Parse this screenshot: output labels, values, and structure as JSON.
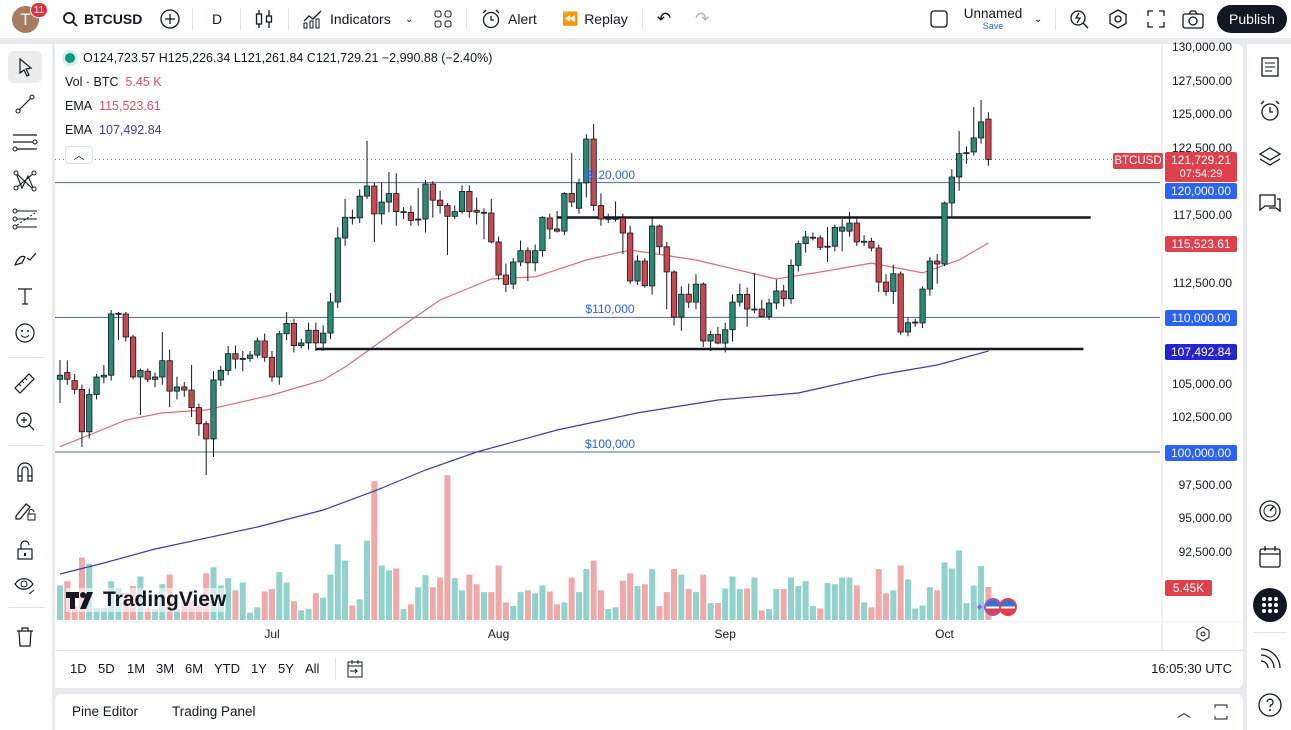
{
  "topbar": {
    "avatar_letter": "T",
    "notifications": "11",
    "symbol": "BTCUSD",
    "interval": "D",
    "indicators": "Indicators",
    "alert": "Alert",
    "replay": "Replay",
    "layout_name": "Unnamed",
    "save": "Save",
    "publish": "Publish"
  },
  "legend": {
    "ohlc": "O124,723.57 H125,226.34 L121,261.84 C121,729.21 −2,990.88 (−2.40%)",
    "vol_label": "Vol · BTC",
    "vol_value": "5.45 K",
    "ema1_label": "EMA",
    "ema1_value": "115,523.61",
    "ema2_label": "EMA",
    "ema2_value": "107,492.84"
  },
  "left_tools": [
    "cursor",
    "trend-line",
    "horizontal-lines",
    "pattern",
    "fib-retracement",
    "brush",
    "text",
    "emoji",
    "ruler",
    "zoom-in",
    "magnet",
    "lock-drawings",
    "lock",
    "eye",
    "trash"
  ],
  "right_sidebar": [
    "watchlist",
    "alerts",
    "layers",
    "chat",
    "dial",
    "calendar",
    "apps",
    "signals",
    "help"
  ],
  "price_tags": {
    "symbol": "BTCUSD",
    "last": "121,729.21",
    "countdown": "07:54:29",
    "level_120": "120,000.00",
    "ema1": "115,523.61",
    "level_110": "110,000.00",
    "ema2": "107,492.84",
    "level_100": "100,000.00",
    "volume": "5.45K"
  },
  "chart_data": {
    "type": "candlestick",
    "symbol": "BTCUSD",
    "interval": "D",
    "ylim": [
      90000,
      130000
    ],
    "y_ticks": [
      "130,000.00",
      "127,500.00",
      "125,000.00",
      "122,500.00",
      "120,000.00",
      "117,500.00",
      "115,000.00",
      "112,500.00",
      "110,000.00",
      "107,500.00",
      "105,000.00",
      "102,500.00",
      "100,000.00",
      "97,500.00",
      "95,000.00",
      "92,500.00"
    ],
    "y_tick_values": [
      130000,
      127500,
      125000,
      122500,
      120000,
      117500,
      115000,
      112500,
      110000,
      107500,
      105000,
      102500,
      100000,
      97500,
      95000,
      92500
    ],
    "x_ticks": [
      {
        "label": "Jul",
        "date": "Jul 1"
      },
      {
        "label": "Aug",
        "date": "Aug 1"
      },
      {
        "label": "Sep",
        "date": "Sep 1"
      },
      {
        "label": "Oct",
        "date": "Oct 1"
      }
    ],
    "colors": {
      "up": "#2a8a74",
      "down": "#c9474f",
      "vol_up": "#92d2cc",
      "vol_down": "#f0a8a8",
      "ema1": "#e06c6c",
      "ema2": "#3b3bb0",
      "level": "#4a6b9a",
      "accent": "#2962ff"
    },
    "candles_fields": [
      "date",
      "open",
      "high",
      "low",
      "close",
      "volume_k"
    ],
    "candles": [
      [
        "Jun 2",
        105400,
        106830,
        103640,
        105700,
        5.7
      ],
      [
        "Jun 3",
        105900,
        106800,
        105000,
        105400,
        6.4
      ],
      [
        "Jun 4",
        105300,
        105800,
        104300,
        104650,
        2.3
      ],
      [
        "Jun 5",
        104650,
        105000,
        100370,
        101500,
        10.3
      ],
      [
        "Jun 6",
        101500,
        104700,
        101000,
        104270,
        9.3
      ],
      [
        "Jun 7",
        104270,
        105800,
        103900,
        105570,
        2.0
      ],
      [
        "Jun 8",
        105570,
        106460,
        105100,
        105700,
        2.0
      ],
      [
        "Jun 9",
        105700,
        110550,
        105300,
        110250,
        6.4
      ],
      [
        "Jun 10",
        110250,
        110400,
        108300,
        110300,
        5.3
      ],
      [
        "Jun 11",
        110250,
        110400,
        108200,
        108540,
        4.5
      ],
      [
        "Jun 12",
        108540,
        108700,
        105400,
        105570,
        5.6
      ],
      [
        "Jun 13",
        105570,
        106200,
        102750,
        106060,
        7.2
      ],
      [
        "Jun 14",
        106000,
        106200,
        105200,
        105400,
        2.0
      ],
      [
        "Jun 15",
        105400,
        105900,
        104800,
        105570,
        1.8
      ],
      [
        "Jun 16",
        105570,
        108900,
        105000,
        106780,
        5.9
      ],
      [
        "Jun 17",
        106780,
        107600,
        103340,
        104520,
        7.5
      ],
      [
        "Jun 18",
        104520,
        105600,
        103900,
        104830,
        1.8
      ],
      [
        "Jun 19",
        104830,
        105200,
        104100,
        104600,
        2.9
      ],
      [
        "Jun 20",
        104600,
        106460,
        102600,
        103300,
        3.1
      ],
      [
        "Jun 21",
        103300,
        103600,
        101200,
        102100,
        2.3
      ],
      [
        "Jun 22",
        102100,
        102300,
        98290,
        100970,
        7.7
      ],
      [
        "Jun 23",
        100970,
        106000,
        99630,
        105350,
        8.7
      ],
      [
        "Jun 24",
        105350,
        106400,
        104900,
        106060,
        5.7
      ],
      [
        "Jun 25",
        106060,
        107870,
        105700,
        107300,
        6.9
      ],
      [
        "Jun 26",
        107300,
        107900,
        106200,
        106900,
        4.9
      ],
      [
        "Jun 27",
        106950,
        107500,
        106000,
        106950,
        6.2
      ],
      [
        "Jun 28",
        106950,
        107500,
        106700,
        107200,
        1.2
      ],
      [
        "Jun 29",
        107200,
        108500,
        107000,
        108250,
        2.1
      ],
      [
        "Jun 30",
        108250,
        108800,
        106700,
        107030,
        4.7
      ],
      [
        "Jul 1",
        107030,
        107500,
        105200,
        105570,
        5.1
      ],
      [
        "Jul 2",
        105570,
        109000,
        105000,
        108780,
        7.9
      ],
      [
        "Jul 3",
        108780,
        110400,
        108300,
        109550,
        6.2
      ],
      [
        "Jul 4",
        109550,
        109900,
        107400,
        107900,
        3.1
      ],
      [
        "Jul 5",
        107900,
        108400,
        107700,
        108100,
        1.6
      ],
      [
        "Jul 6",
        108100,
        109600,
        107600,
        109040,
        1.8
      ],
      [
        "Jul 7",
        109040,
        109600,
        107500,
        108100,
        4.4
      ],
      [
        "Jul 8",
        108100,
        109400,
        107500,
        108830,
        3.7
      ],
      [
        "Jul 9",
        108830,
        111800,
        108400,
        111140,
        7.5
      ],
      [
        "Jul 10",
        111140,
        116700,
        110700,
        115890,
        12.5
      ],
      [
        "Jul 11",
        115890,
        118800,
        115300,
        117430,
        9.8
      ],
      [
        "Jul 12",
        117430,
        118000,
        116900,
        117380,
        2.4
      ],
      [
        "Jul 13",
        117380,
        119500,
        117000,
        119000,
        3.4
      ],
      [
        "Jul 14",
        119000,
        123100,
        118800,
        119750,
        13.1
      ],
      [
        "Jul 15",
        119750,
        120000,
        115600,
        117680,
        22.9
      ],
      [
        "Jul 16",
        117680,
        120000,
        116900,
        118560,
        9.0
      ],
      [
        "Jul 17",
        118560,
        120800,
        117800,
        119190,
        8.2
      ],
      [
        "Jul 18",
        119190,
        120700,
        116800,
        117850,
        8.5
      ],
      [
        "Jul 19",
        117850,
        118200,
        117300,
        117850,
        1.8
      ],
      [
        "Jul 20",
        117800,
        118300,
        116800,
        117200,
        2.6
      ],
      [
        "Jul 21",
        117250,
        119600,
        116800,
        117300,
        5.4
      ],
      [
        "Jul 22",
        117300,
        120200,
        116300,
        119900,
        7.4
      ],
      [
        "Jul 23",
        119900,
        120100,
        117400,
        118700,
        5.4
      ],
      [
        "Jul 24",
        118700,
        119400,
        117700,
        118300,
        7.0
      ],
      [
        "Jul 25",
        118300,
        118500,
        114630,
        117500,
        23.9
      ],
      [
        "Jul 26",
        117500,
        118300,
        117300,
        117850,
        6.9
      ],
      [
        "Jul 27",
        117850,
        119800,
        117700,
        119350,
        4.9
      ],
      [
        "Jul 28",
        119350,
        119800,
        117400,
        117850,
        7.5
      ],
      [
        "Jul 29",
        117950,
        118900,
        116900,
        117800,
        5.9
      ],
      [
        "Jul 30",
        117800,
        118100,
        115800,
        117800,
        4.6
      ],
      [
        "Jul 31",
        117750,
        118800,
        115500,
        115600,
        4.6
      ],
      [
        "Aug 1",
        115600,
        116000,
        112800,
        113140,
        9.0
      ],
      [
        "Aug 2",
        113140,
        114000,
        111880,
        112450,
        2.9
      ],
      [
        "Aug 3",
        112470,
        114400,
        112100,
        114110,
        2.3
      ],
      [
        "Aug 4",
        114110,
        115700,
        113800,
        114950,
        4.6
      ],
      [
        "Aug 5",
        114950,
        115200,
        112700,
        114050,
        4.9
      ],
      [
        "Aug 6",
        114050,
        115400,
        113400,
        114950,
        4.4
      ],
      [
        "Aug 7",
        114950,
        117500,
        114500,
        117430,
        5.7
      ],
      [
        "Aug 8",
        117380,
        117700,
        115800,
        116560,
        4.7
      ],
      [
        "Aug 9",
        116560,
        117900,
        116300,
        116400,
        2.6
      ],
      [
        "Aug 10",
        116400,
        119300,
        116100,
        119200,
        2.9
      ],
      [
        "Aug 11",
        119200,
        122200,
        118200,
        118560,
        7.0
      ],
      [
        "Aug 12",
        118100,
        120300,
        117700,
        119970,
        4.6
      ],
      [
        "Aug 13",
        119980,
        123600,
        118900,
        123240,
        8.4
      ],
      [
        "Aug 14",
        123240,
        124360,
        117900,
        118300,
        9.8
      ],
      [
        "Aug 15",
        118300,
        119200,
        116800,
        117300,
        4.9
      ],
      [
        "Aug 16",
        117350,
        117700,
        117000,
        117350,
        1.8
      ],
      [
        "Aug 17",
        117350,
        118600,
        117100,
        117350,
        2.1
      ],
      [
        "Aug 18",
        117380,
        117700,
        114700,
        116260,
        6.5
      ],
      [
        "Aug 19",
        116260,
        116800,
        112500,
        112700,
        7.7
      ],
      [
        "Aug 20",
        112700,
        114600,
        112400,
        114180,
        5.6
      ],
      [
        "Aug 21",
        114180,
        114400,
        112200,
        112350,
        5.9
      ],
      [
        "Aug 22",
        112330,
        117400,
        111700,
        116780,
        8.4
      ],
      [
        "Aug 23",
        116780,
        116900,
        114700,
        115240,
        2.3
      ],
      [
        "Aug 24",
        115240,
        115600,
        110600,
        113370,
        4.6
      ],
      [
        "Aug 25",
        113370,
        113500,
        109400,
        110020,
        8.4
      ],
      [
        "Aug 26",
        110020,
        112300,
        109000,
        111720,
        7.5
      ],
      [
        "Aug 27",
        111720,
        112500,
        110700,
        111130,
        5.1
      ],
      [
        "Aug 28",
        111130,
        113200,
        110600,
        112460,
        4.6
      ],
      [
        "Aug 29",
        112470,
        112600,
        107800,
        108240,
        7.5
      ],
      [
        "Aug 30",
        108240,
        109000,
        107500,
        108720,
        2.8
      ],
      [
        "Aug 31",
        108720,
        109300,
        108000,
        108090,
        2.8
      ],
      [
        "Sep 1",
        108090,
        109600,
        107400,
        109080,
        5.2
      ],
      [
        "Sep 2",
        109080,
        111700,
        108200,
        111130,
        7.2
      ],
      [
        "Sep 3",
        111130,
        112500,
        110800,
        111700,
        5.1
      ],
      [
        "Sep 4",
        111700,
        112200,
        109300,
        110620,
        5.2
      ],
      [
        "Sep 5",
        110620,
        113300,
        110300,
        110620,
        7.0
      ],
      [
        "Sep 6",
        110620,
        111300,
        110000,
        110060,
        1.6
      ],
      [
        "Sep 7",
        110060,
        111400,
        109800,
        111060,
        1.8
      ],
      [
        "Sep 8",
        111060,
        112800,
        110600,
        111960,
        5.1
      ],
      [
        "Sep 9",
        111960,
        112400,
        110800,
        111380,
        5.1
      ],
      [
        "Sep 10",
        111380,
        114300,
        111000,
        113860,
        7.0
      ],
      [
        "Sep 11",
        113860,
        115700,
        113400,
        115470,
        5.6
      ],
      [
        "Sep 12",
        115470,
        116400,
        114800,
        115970,
        6.4
      ],
      [
        "Sep 13",
        115950,
        116300,
        115700,
        115950,
        2.3
      ],
      [
        "Sep 14",
        115900,
        116100,
        115000,
        115200,
        1.9
      ],
      [
        "Sep 15",
        115280,
        116700,
        114100,
        115280,
        6.1
      ],
      [
        "Sep 16",
        115280,
        116900,
        114900,
        116680,
        5.9
      ],
      [
        "Sep 17",
        116400,
        117300,
        114900,
        116700,
        7.0
      ],
      [
        "Sep 18",
        116400,
        117830,
        116000,
        117000,
        7.0
      ],
      [
        "Sep 19",
        117000,
        117300,
        115300,
        115600,
        5.7
      ],
      [
        "Sep 20",
        115650,
        116100,
        115300,
        115650,
        2.9
      ],
      [
        "Sep 21",
        115650,
        115900,
        114900,
        115150,
        2.1
      ],
      [
        "Sep 22",
        115150,
        115400,
        111900,
        112620,
        8.4
      ],
      [
        "Sep 23",
        112620,
        113200,
        111600,
        111930,
        4.4
      ],
      [
        "Sep 24",
        111930,
        113900,
        111000,
        113240,
        4.9
      ],
      [
        "Sep 25",
        113220,
        113400,
        108700,
        108910,
        9.0
      ],
      [
        "Sep 26",
        108910,
        110000,
        108600,
        109600,
        6.7
      ],
      [
        "Sep 27",
        109600,
        109900,
        109300,
        109650,
        1.9
      ],
      [
        "Sep 28",
        109580,
        112300,
        109200,
        112100,
        2.4
      ],
      [
        "Sep 29",
        112100,
        114500,
        111600,
        114180,
        5.4
      ],
      [
        "Sep 30",
        114180,
        114700,
        112500,
        113960,
        4.9
      ],
      [
        "Oct 1",
        113960,
        118600,
        113800,
        118490,
        9.5
      ],
      [
        "Oct 2",
        118490,
        121000,
        117500,
        120420,
        8.5
      ],
      [
        "Oct 3",
        120420,
        123840,
        119400,
        122160,
        11.5
      ],
      [
        "Oct 4",
        122230,
        122700,
        121400,
        122230,
        2.8
      ],
      [
        "Oct 5",
        122280,
        125620,
        122000,
        123320,
        5.7
      ],
      [
        "Oct 6",
        123320,
        126140,
        122900,
        124510,
        8.9
      ],
      [
        "Oct 7",
        124723.57,
        125226.34,
        121261.84,
        121729.21,
        5.45
      ]
    ],
    "ema1": {
      "label": "EMA",
      "value": 115523.61,
      "points": [
        [
          "Jun 2",
          100400
        ],
        [
          "Jun 6",
          101260
        ],
        [
          "Jun 11",
          102370
        ],
        [
          "Jun 16",
          102900
        ],
        [
          "Jun 22",
          103120
        ],
        [
          "Jun 25",
          103500
        ],
        [
          "Jul 1",
          104230
        ],
        [
          "Jul 8",
          105350
        ],
        [
          "Jul 11",
          106310
        ],
        [
          "Jul 20",
          109800
        ],
        [
          "Jul 24",
          111290
        ],
        [
          "Jul 31",
          112850
        ],
        [
          "Aug 6",
          113000
        ],
        [
          "Aug 13",
          114260
        ],
        [
          "Aug 19",
          115000
        ],
        [
          "Aug 28",
          114260
        ],
        [
          "Sep 8",
          112850
        ],
        [
          "Sep 14",
          113370
        ],
        [
          "Sep 21",
          114030
        ],
        [
          "Sep 28",
          113300
        ],
        [
          "Oct 3",
          114260
        ],
        [
          "Oct 7",
          115523.61
        ]
      ]
    },
    "ema2": {
      "label": "EMA",
      "value": 107492.84,
      "points": [
        [
          "Jun 2",
          90940
        ],
        [
          "Jun 8",
          91760
        ],
        [
          "Jun 15",
          92800
        ],
        [
          "Jun 22",
          93610
        ],
        [
          "Jun 29",
          94430
        ],
        [
          "Jul 8",
          95690
        ],
        [
          "Jul 15",
          97100
        ],
        [
          "Jul 22",
          98660
        ],
        [
          "Jul 29",
          100000
        ],
        [
          "Aug 9",
          101630
        ],
        [
          "Aug 20",
          102900
        ],
        [
          "Aug 31",
          103860
        ],
        [
          "Sep 11",
          104380
        ],
        [
          "Sep 22",
          105720
        ],
        [
          "Sep 30",
          106460
        ],
        [
          "Oct 7",
          107492.84
        ]
      ]
    },
    "horizontal_lines": [
      {
        "price": 120000,
        "label": "$120,000"
      },
      {
        "price": 110000,
        "label": "$110,000"
      },
      {
        "price": 100000,
        "label": "$100,000"
      }
    ],
    "trendlines": [
      {
        "price": 117410,
        "from": "Aug 9",
        "to": "Oct 21"
      },
      {
        "price": 107650,
        "from": "Jul 7",
        "to": "Oct 20"
      }
    ]
  },
  "range_bar": {
    "ranges": [
      "1D",
      "5D",
      "1M",
      "3M",
      "6M",
      "YTD",
      "1Y",
      "5Y",
      "All"
    ],
    "clock": "16:05:30 UTC"
  },
  "bottom_panel": {
    "pine_editor": "Pine Editor",
    "trading_panel": "Trading Panel"
  },
  "watermark": "TradingView"
}
